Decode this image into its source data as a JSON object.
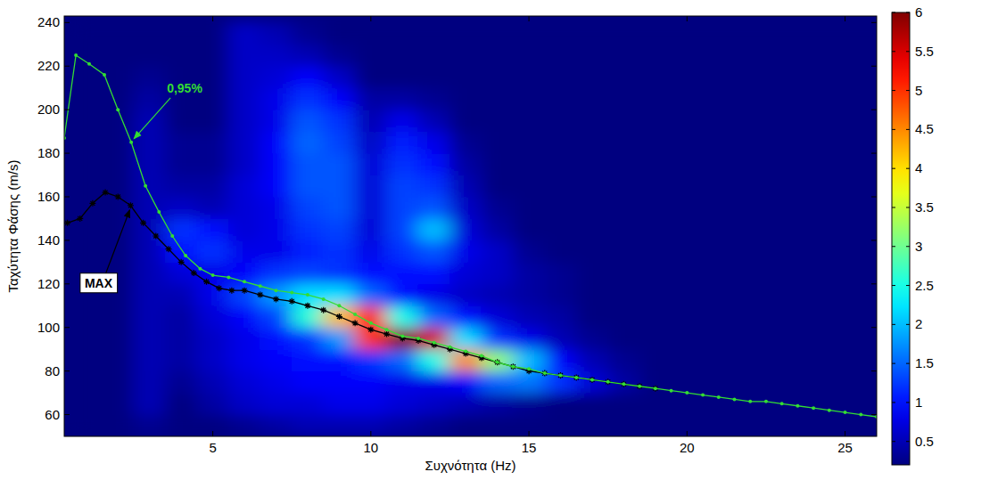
{
  "chart_data": {
    "type": "heatmap",
    "x_label": "Συχνότητα (Hz)",
    "y_label": "Ταχύτητα Φάσης (m/s)",
    "xlim": [
      0.3,
      26
    ],
    "ylim": [
      50,
      243
    ],
    "xticks": [
      5,
      10,
      15,
      20,
      25
    ],
    "yticks": [
      60,
      80,
      100,
      120,
      140,
      160,
      180,
      200,
      220,
      240
    ],
    "grid": false,
    "heatmap": {
      "x": [
        1,
        2,
        3,
        4,
        5,
        6,
        7,
        8,
        9,
        10,
        11,
        12,
        13,
        14,
        15,
        16,
        17,
        18,
        19,
        20,
        21,
        22,
        23,
        24,
        25,
        26
      ],
      "y": [
        55,
        65,
        75,
        85,
        95,
        105,
        115,
        125,
        135,
        145,
        155,
        165,
        175,
        185,
        195,
        205,
        215,
        225,
        235
      ],
      "values": [
        [
          0.1,
          0.1,
          0.3,
          0.1,
          0.2,
          0.3,
          0.4,
          0.5,
          0.5,
          0.5,
          0.4,
          0.3,
          0.2,
          0.1,
          0.1,
          0.1,
          0.1,
          0.1,
          0.1,
          0.1,
          0.1,
          0.1,
          0.1,
          0.1,
          0.1,
          0.1
        ],
        [
          0.1,
          0.1,
          0.5,
          0.2,
          0.4,
          0.6,
          0.7,
          0.7,
          0.8,
          0.8,
          0.7,
          0.6,
          0.5,
          0.4,
          0.3,
          0.2,
          0.1,
          0.1,
          0.1,
          0.1,
          0.1,
          0.1,
          0.1,
          0.1,
          0.1,
          0.1
        ],
        [
          0.1,
          0.1,
          0.5,
          0.3,
          0.5,
          0.7,
          0.8,
          0.9,
          0.9,
          0.9,
          0.8,
          0.8,
          0.9,
          1.5,
          1.6,
          1.2,
          0.7,
          0.4,
          0.2,
          0.1,
          0.1,
          0.1,
          0.1,
          0.1,
          0.1,
          0.1
        ],
        [
          0.1,
          0.1,
          0.5,
          0.4,
          0.6,
          0.8,
          0.9,
          1.0,
          1.0,
          1.2,
          1.5,
          2.5,
          4.5,
          3.2,
          2.0,
          0.9,
          0.5,
          0.3,
          0.1,
          0.1,
          0.1,
          0.1,
          0.1,
          0.1,
          0.1,
          0.1
        ],
        [
          0.1,
          0.1,
          0.5,
          0.4,
          0.6,
          0.8,
          1.0,
          1.2,
          1.8,
          5.0,
          6.0,
          5.5,
          2.2,
          1.2,
          0.8,
          0.5,
          0.3,
          0.2,
          0.1,
          0.1,
          0.1,
          0.1,
          0.1,
          0.1,
          0.1,
          0.1
        ],
        [
          0.1,
          0.1,
          0.5,
          0.4,
          0.7,
          0.9,
          1.3,
          2.6,
          4.2,
          5.2,
          2.5,
          1.5,
          1.0,
          0.7,
          0.5,
          0.4,
          0.2,
          0.1,
          0.1,
          0.1,
          0.1,
          0.1,
          0.1,
          0.1,
          0.1,
          0.1
        ],
        [
          0.1,
          0.1,
          0.5,
          0.5,
          0.8,
          1.3,
          1.8,
          2.2,
          2.2,
          1.5,
          1.0,
          0.8,
          0.6,
          0.5,
          0.4,
          0.3,
          0.2,
          0.1,
          0.1,
          0.1,
          0.1,
          0.1,
          0.1,
          0.1,
          0.1,
          0.1
        ],
        [
          0.1,
          0.1,
          0.5,
          0.7,
          0.8,
          0.9,
          1.2,
          1.3,
          1.2,
          1.0,
          1.0,
          1.0,
          0.7,
          0.6,
          0.4,
          0.3,
          0.2,
          0.1,
          0.1,
          0.1,
          0.1,
          0.1,
          0.1,
          0.1,
          0.1,
          0.1
        ],
        [
          0.1,
          0.1,
          0.5,
          1.0,
          1.2,
          0.8,
          0.8,
          1.1,
          1.2,
          0.8,
          1.2,
          1.4,
          0.8,
          0.6,
          0.3,
          0.2,
          0.1,
          0.1,
          0.1,
          0.1,
          0.1,
          0.1,
          0.1,
          0.1,
          0.1,
          0.1
        ],
        [
          0.1,
          0.1,
          0.5,
          1.2,
          1.0,
          0.7,
          0.8,
          1.2,
          1.3,
          0.7,
          1.3,
          2.0,
          0.7,
          0.4,
          0.2,
          0.1,
          0.1,
          0.1,
          0.1,
          0.1,
          0.1,
          0.1,
          0.1,
          0.1,
          0.1,
          0.1
        ],
        [
          0.1,
          0.1,
          0.5,
          0.6,
          0.5,
          0.7,
          0.8,
          1.3,
          1.4,
          0.7,
          1.3,
          1.4,
          0.6,
          0.3,
          0.1,
          0.1,
          0.1,
          0.1,
          0.1,
          0.1,
          0.1,
          0.1,
          0.1,
          0.1,
          0.1,
          0.1
        ],
        [
          0.1,
          0.1,
          0.5,
          0.4,
          0.4,
          0.7,
          0.9,
          1.4,
          1.4,
          0.7,
          1.3,
          1.2,
          0.5,
          0.2,
          0.1,
          0.1,
          0.1,
          0.1,
          0.1,
          0.1,
          0.1,
          0.1,
          0.1,
          0.1,
          0.1,
          0.1
        ],
        [
          0.1,
          0.1,
          0.5,
          0.3,
          0.3,
          0.6,
          0.9,
          1.4,
          1.4,
          0.7,
          1.2,
          1.0,
          0.4,
          0.1,
          0.1,
          0.1,
          0.1,
          0.1,
          0.1,
          0.1,
          0.1,
          0.1,
          0.1,
          0.1,
          0.1,
          0.1
        ],
        [
          0.1,
          0.1,
          0.5,
          0.3,
          0.3,
          0.6,
          0.9,
          1.5,
          1.3,
          0.6,
          1.1,
          0.8,
          0.3,
          0.1,
          0.1,
          0.1,
          0.1,
          0.1,
          0.1,
          0.1,
          0.1,
          0.1,
          0.1,
          0.1,
          0.1,
          0.1
        ],
        [
          0.1,
          0.1,
          0.5,
          0.2,
          0.2,
          0.6,
          0.8,
          1.4,
          1.2,
          0.5,
          0.8,
          0.5,
          0.2,
          0.1,
          0.1,
          0.1,
          0.1,
          0.1,
          0.1,
          0.1,
          0.1,
          0.1,
          0.1,
          0.1,
          0.1,
          0.1
        ],
        [
          0.1,
          0.1,
          0.4,
          0.2,
          0.2,
          0.6,
          0.8,
          1.2,
          0.9,
          0.4,
          0.4,
          0.3,
          0.1,
          0.1,
          0.1,
          0.1,
          0.1,
          0.1,
          0.1,
          0.1,
          0.1,
          0.1,
          0.1,
          0.1,
          0.1,
          0.1
        ],
        [
          0.1,
          0.1,
          0.3,
          0.1,
          0.2,
          0.6,
          0.7,
          0.9,
          0.6,
          0.2,
          0.2,
          0.1,
          0.1,
          0.1,
          0.1,
          0.1,
          0.1,
          0.1,
          0.1,
          0.1,
          0.1,
          0.1,
          0.1,
          0.1,
          0.1,
          0.1
        ],
        [
          0.1,
          0.1,
          0.2,
          0.1,
          0.2,
          0.6,
          0.6,
          0.5,
          0.3,
          0.1,
          0.1,
          0.1,
          0.1,
          0.1,
          0.1,
          0.1,
          0.1,
          0.1,
          0.1,
          0.1,
          0.1,
          0.1,
          0.1,
          0.1,
          0.1,
          0.1
        ],
        [
          0.1,
          0.1,
          0.1,
          0.1,
          0.2,
          0.6,
          0.5,
          0.3,
          0.1,
          0.1,
          0.1,
          0.1,
          0.1,
          0.1,
          0.1,
          0.1,
          0.1,
          0.1,
          0.1,
          0.1,
          0.1,
          0.1,
          0.1,
          0.1,
          0.1,
          0.1
        ]
      ]
    },
    "colorbar": {
      "lim": [
        0.2,
        6
      ],
      "ticks": [
        0.5,
        1,
        1.5,
        2,
        2.5,
        3,
        3.5,
        4,
        4.5,
        5,
        5.5,
        6
      ]
    },
    "series": [
      {
        "name": "0,95%",
        "color": "#33dd33",
        "marker": "dot",
        "line_style": "solid",
        "x": [
          0.3,
          0.67,
          1.09,
          1.57,
          2.0,
          2.42,
          2.87,
          3.3,
          3.72,
          4.14,
          4.6,
          5.0,
          5.5,
          6.0,
          6.5,
          7.0,
          7.5,
          8.0,
          8.5,
          9.0,
          9.5,
          10.0,
          10.5,
          11.0,
          11.5,
          12.0,
          12.5,
          13.0,
          13.5,
          14.0,
          14.5,
          15.0,
          15.5,
          16.0,
          16.5,
          17.0,
          17.5,
          18.0,
          18.5,
          19.0,
          19.5,
          20.0,
          20.5,
          21.0,
          21.5,
          22.0,
          22.5,
          23.0,
          23.5,
          24.0,
          24.5,
          25.0,
          25.5,
          26.0
        ],
        "values": [
          187,
          225,
          221,
          216,
          200,
          185,
          165,
          153,
          142,
          133,
          127,
          124,
          123,
          121,
          119,
          117,
          116,
          115,
          113,
          110,
          106,
          102,
          99,
          96,
          95,
          93,
          91,
          89,
          87,
          84,
          82,
          81,
          79,
          78,
          77,
          76,
          75,
          74,
          73,
          72,
          71,
          70,
          69,
          68,
          67,
          66,
          66,
          65,
          64,
          63,
          62,
          61,
          60,
          59
        ]
      },
      {
        "name": "MAX",
        "color": "#000000",
        "marker": "star",
        "line_style": "solid",
        "x": [
          0.4,
          0.8,
          1.2,
          1.6,
          2.0,
          2.4,
          2.8,
          3.2,
          3.6,
          4.0,
          4.4,
          4.8,
          5.2,
          5.6,
          6.0,
          6.5,
          7.0,
          7.5,
          8.0,
          8.5,
          9.0,
          9.5,
          10.0,
          10.5,
          11.0,
          11.5,
          12.0,
          12.5,
          13.0,
          13.5,
          14.0,
          14.5,
          15.0,
          15.5,
          16.0,
          16.5,
          17.0,
          17.5,
          18.0,
          18.5,
          19.0
        ],
        "values": [
          148,
          150,
          157,
          162,
          160,
          156,
          148,
          142,
          136,
          130,
          125,
          121,
          118,
          117,
          117,
          115,
          113,
          112,
          110,
          108,
          105,
          102,
          99,
          97,
          95,
          94,
          92,
          90,
          88,
          86,
          84,
          82,
          80,
          79,
          78,
          77,
          76,
          75,
          74,
          73,
          72
        ]
      }
    ]
  }
}
